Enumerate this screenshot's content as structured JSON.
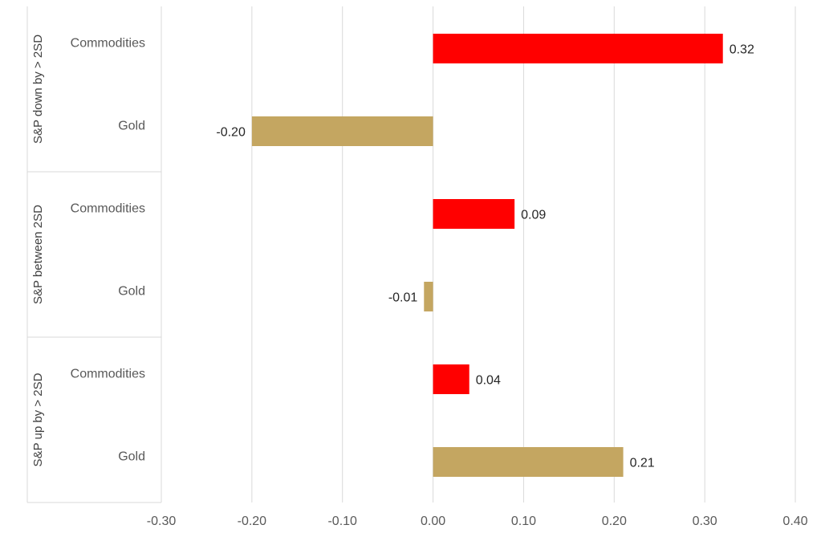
{
  "chart_data": {
    "type": "bar",
    "orientation": "horizontal",
    "xlim": [
      -0.3,
      0.4
    ],
    "x_ticks": [
      "-0.30",
      "-0.20",
      "-0.10",
      "0.00",
      "0.10",
      "0.20",
      "0.30",
      "0.40"
    ],
    "x_tick_values": [
      -0.3,
      -0.2,
      -0.1,
      0.0,
      0.1,
      0.2,
      0.3,
      0.4
    ],
    "grid": true,
    "groups": [
      {
        "label": "S&P down by > 2SD",
        "rows": [
          {
            "category": "Commodities",
            "value": 0.32,
            "label": "0.32",
            "color": "#ff0000"
          },
          {
            "category": "Gold",
            "value": -0.2,
            "label": "-0.20",
            "color": "#c4a661"
          }
        ]
      },
      {
        "label": "S&P between 2SD",
        "rows": [
          {
            "category": "Commodities",
            "value": 0.09,
            "label": "0.09",
            "color": "#ff0000"
          },
          {
            "category": "Gold",
            "value": -0.01,
            "label": "-0.01",
            "color": "#c4a661"
          }
        ]
      },
      {
        "label": "S&P up by > 2SD",
        "rows": [
          {
            "category": "Commodities",
            "value": 0.04,
            "label": "0.04",
            "color": "#ff0000"
          },
          {
            "category": "Gold",
            "value": 0.21,
            "label": "0.21",
            "color": "#c4a661"
          }
        ]
      }
    ]
  }
}
